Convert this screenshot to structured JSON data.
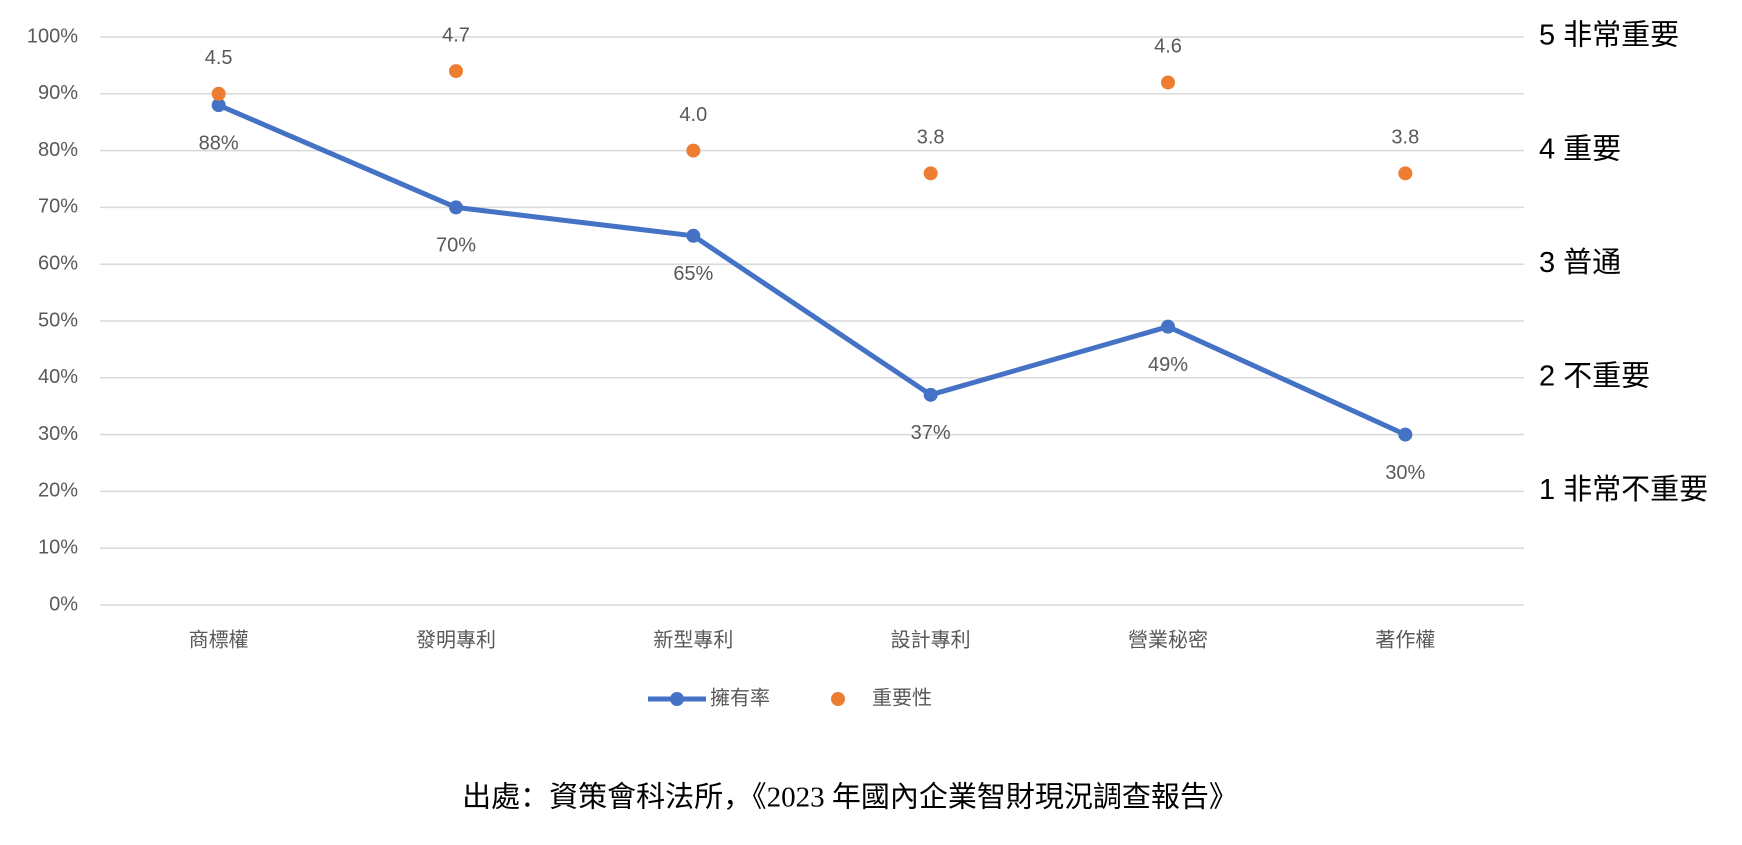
{
  "chart_data": {
    "type": "line",
    "categories": [
      "商標權",
      "發明專利",
      "新型專利",
      "設計專利",
      "營業秘密",
      "著作權"
    ],
    "series": [
      {
        "name": "擁有率",
        "color": "#4472c4",
        "type": "line",
        "values": [
          88,
          70,
          65,
          37,
          49,
          30
        ],
        "value_labels": [
          "88%",
          "70%",
          "65%",
          "37%",
          "49%",
          "30%"
        ]
      },
      {
        "name": "重要性",
        "color": "#ed7d31",
        "type": "scatter",
        "axis": "y2",
        "values": [
          4.5,
          4.7,
          4,
          3.8,
          4.6,
          3.8
        ],
        "value_labels": [
          "4.5",
          "4.7",
          "4.0",
          "3.8",
          "4.6",
          "3.8"
        ]
      }
    ],
    "ylim": [
      0,
      100
    ],
    "yticks": [
      {
        "value": 0,
        "label": "0%"
      },
      {
        "value": 10,
        "label": "10%"
      },
      {
        "value": 20,
        "label": "20%"
      },
      {
        "value": 30,
        "label": "30%"
      },
      {
        "value": 40,
        "label": "40%"
      },
      {
        "value": 50,
        "label": "50%"
      },
      {
        "value": 60,
        "label": "60%"
      },
      {
        "value": 70,
        "label": "70%"
      },
      {
        "value": 80,
        "label": "80%"
      },
      {
        "value": 90,
        "label": "90%"
      },
      {
        "value": 100,
        "label": "100%"
      }
    ],
    "y2lim": [
      0,
      5
    ],
    "y2ticks": [
      {
        "value": 1,
        "label": "1 非常不重要"
      },
      {
        "value": 2,
        "label": "2 不重要"
      },
      {
        "value": 3,
        "label": "3 普通"
      },
      {
        "value": 4,
        "label": "4 重要"
      },
      {
        "value": 5,
        "label": "5 非常重要"
      }
    ],
    "grid": true,
    "legend": "bottom",
    "source": "出處：資策會科法所，《2023 年國內企業智財現況調查報告》"
  }
}
